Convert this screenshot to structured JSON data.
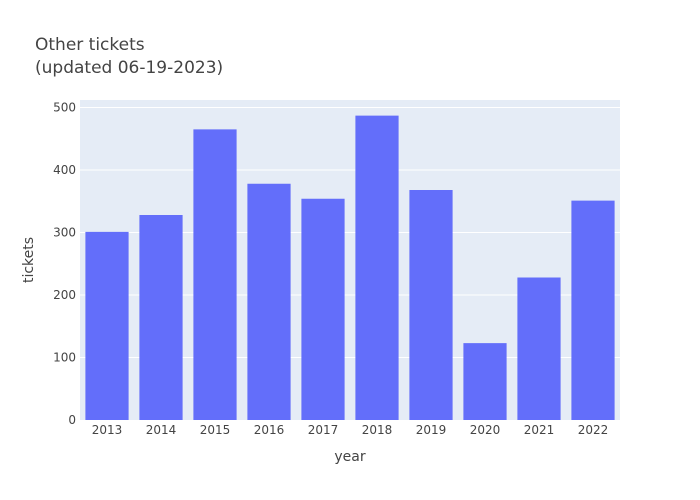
{
  "chart_data": {
    "type": "bar",
    "title_lines": [
      "Other tickets",
      "(updated 06-19-2023)"
    ],
    "xlabel": "year",
    "ylabel": "tickets",
    "categories": [
      "2013",
      "2014",
      "2015",
      "2016",
      "2017",
      "2018",
      "2019",
      "2020",
      "2021",
      "2022"
    ],
    "values": [
      301,
      328,
      465,
      378,
      354,
      487,
      368,
      123,
      228,
      351
    ],
    "ylim": [
      0,
      512
    ],
    "yticks": [
      0,
      100,
      200,
      300,
      400,
      500
    ],
    "grid": true,
    "legend": "none",
    "colors": {
      "bar": "#636efa",
      "plot_bg": "#e5ecf6",
      "grid": "#ffffff",
      "text": "#444444"
    }
  }
}
